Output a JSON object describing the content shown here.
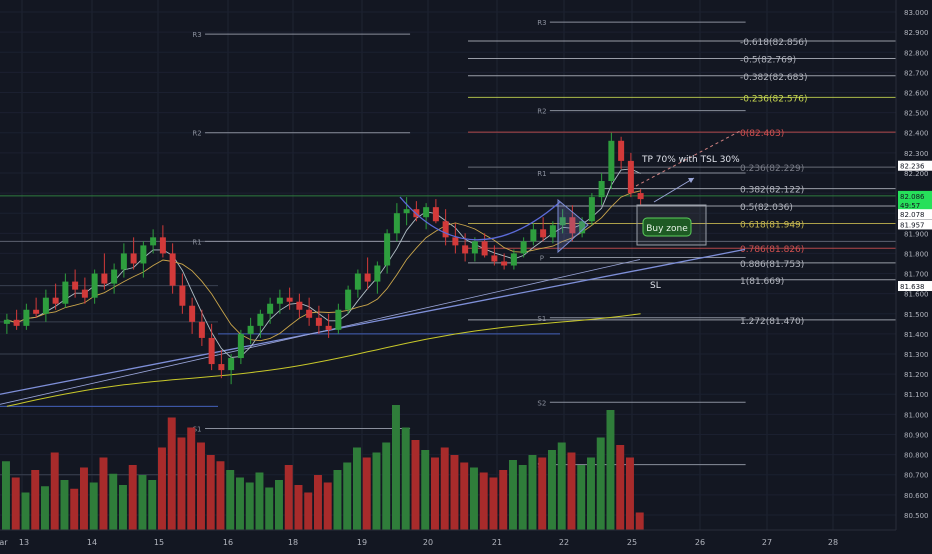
{
  "chart_data": {
    "type": "candlestick",
    "symbol_note": "",
    "x_axis": {
      "ticks": [
        "13",
        "14",
        "15",
        "16",
        "18",
        "19",
        "20",
        "21",
        "22",
        "25",
        "26",
        "27",
        "28",
        "Mar"
      ]
    },
    "y_axis": {
      "range": [
        80.45,
        83.03
      ],
      "ticks": [
        "83.000",
        "82.900",
        "82.800",
        "82.700",
        "82.600",
        "82.500",
        "82.400",
        "82.300",
        "82.200",
        "82.100",
        "82.000",
        "81.900",
        "81.800",
        "81.700",
        "81.600",
        "81.500",
        "81.400",
        "81.300",
        "81.200",
        "81.100",
        "81.000",
        "80.900",
        "80.800",
        "80.700",
        "80.600",
        "80.500"
      ],
      "highlights": [
        {
          "label": "82.236",
          "value": 82.236,
          "bg": "#ffffff",
          "fg": "#131722"
        },
        {
          "label": "82.086",
          "value": 82.086,
          "bg": "#26e05a",
          "fg": "#131722"
        },
        {
          "label": "49:57",
          "value": 82.04,
          "bg": "#26e05a",
          "fg": "#131722"
        },
        {
          "label": "82.078",
          "value": 81.995,
          "bg": "#ffffff",
          "fg": "#131722"
        },
        {
          "label": "81.957",
          "value": 81.944,
          "bg": "#ffffff",
          "fg": "#131722"
        },
        {
          "label": "81.638",
          "value": 81.638,
          "bg": "#ffffff",
          "fg": "#131722"
        }
      ]
    },
    "candles_ohlc": [
      [
        81.45,
        81.5,
        81.4,
        81.47
      ],
      [
        81.47,
        81.52,
        81.42,
        81.44
      ],
      [
        81.44,
        81.55,
        81.42,
        81.52
      ],
      [
        81.52,
        81.58,
        81.48,
        81.5
      ],
      [
        81.5,
        81.62,
        81.46,
        81.58
      ],
      [
        81.58,
        81.65,
        81.52,
        81.55
      ],
      [
        81.55,
        81.7,
        81.53,
        81.66
      ],
      [
        81.66,
        81.72,
        81.58,
        81.62
      ],
      [
        81.62,
        81.68,
        81.55,
        81.58
      ],
      [
        81.58,
        81.72,
        81.55,
        81.7
      ],
      [
        81.7,
        81.8,
        81.62,
        81.65
      ],
      [
        81.65,
        81.75,
        81.6,
        81.72
      ],
      [
        81.72,
        81.85,
        81.68,
        81.8
      ],
      [
        81.8,
        81.88,
        81.72,
        81.75
      ],
      [
        81.75,
        81.86,
        81.68,
        81.84
      ],
      [
        81.84,
        81.92,
        81.8,
        81.88
      ],
      [
        81.88,
        81.94,
        81.78,
        81.8
      ],
      [
        81.8,
        81.85,
        81.6,
        81.64
      ],
      [
        81.64,
        81.7,
        81.5,
        81.54
      ],
      [
        81.54,
        81.58,
        81.4,
        81.46
      ],
      [
        81.46,
        81.52,
        81.34,
        81.38
      ],
      [
        81.38,
        81.45,
        81.22,
        81.25
      ],
      [
        81.25,
        81.32,
        81.18,
        81.22
      ],
      [
        81.22,
        81.3,
        81.15,
        81.28
      ],
      [
        81.28,
        81.42,
        81.25,
        81.4
      ],
      [
        81.4,
        81.48,
        81.35,
        81.44
      ],
      [
        81.44,
        81.52,
        81.38,
        81.5
      ],
      [
        81.5,
        81.58,
        81.45,
        81.55
      ],
      [
        81.55,
        81.62,
        81.5,
        81.58
      ],
      [
        81.58,
        81.63,
        81.52,
        81.56
      ],
      [
        81.56,
        81.6,
        81.48,
        81.52
      ],
      [
        81.52,
        81.58,
        81.44,
        81.48
      ],
      [
        81.48,
        81.54,
        81.4,
        81.44
      ],
      [
        81.44,
        81.5,
        81.38,
        81.42
      ],
      [
        81.42,
        81.55,
        81.4,
        81.52
      ],
      [
        81.52,
        81.64,
        81.5,
        81.62
      ],
      [
        81.62,
        81.72,
        81.58,
        81.7
      ],
      [
        81.7,
        81.78,
        81.62,
        81.66
      ],
      [
        81.66,
        81.76,
        81.6,
        81.74
      ],
      [
        81.74,
        81.92,
        81.7,
        81.9
      ],
      [
        81.9,
        82.05,
        81.86,
        82.0
      ],
      [
        82.0,
        82.08,
        81.94,
        82.02
      ],
      [
        82.02,
        82.06,
        81.96,
        81.98
      ],
      [
        81.98,
        82.05,
        81.92,
        82.03
      ],
      [
        82.03,
        82.07,
        81.95,
        81.96
      ],
      [
        81.96,
        82.02,
        81.84,
        81.88
      ],
      [
        81.88,
        81.95,
        81.8,
        81.84
      ],
      [
        81.84,
        81.9,
        81.76,
        81.8
      ],
      [
        81.8,
        81.88,
        81.76,
        81.86
      ],
      [
        81.86,
        81.9,
        81.78,
        81.79
      ],
      [
        81.79,
        81.84,
        81.74,
        81.76
      ],
      [
        81.76,
        81.8,
        81.72,
        81.74
      ],
      [
        81.74,
        81.82,
        81.72,
        81.8
      ],
      [
        81.8,
        81.88,
        81.78,
        81.86
      ],
      [
        81.86,
        81.95,
        81.84,
        81.92
      ],
      [
        81.92,
        81.98,
        81.86,
        81.88
      ],
      [
        81.88,
        81.96,
        81.85,
        81.94
      ],
      [
        81.94,
        82.02,
        81.9,
        81.98
      ],
      [
        81.98,
        82.04,
        81.86,
        81.9
      ],
      [
        81.9,
        81.98,
        81.88,
        81.96
      ],
      [
        81.96,
        82.1,
        81.94,
        82.08
      ],
      [
        82.08,
        82.2,
        82.04,
        82.16
      ],
      [
        82.16,
        82.4,
        82.12,
        82.36
      ],
      [
        82.36,
        82.38,
        82.22,
        82.26
      ],
      [
        82.26,
        82.3,
        82.08,
        82.1
      ],
      [
        82.1,
        82.12,
        82.04,
        82.07
      ]
    ],
    "volumes": [
      0.55,
      0.42,
      0.3,
      0.48,
      0.35,
      0.62,
      0.4,
      0.33,
      0.5,
      0.38,
      0.58,
      0.45,
      0.36,
      0.52,
      0.44,
      0.4,
      0.66,
      0.9,
      0.74,
      0.82,
      0.7,
      0.6,
      0.55,
      0.48,
      0.42,
      0.38,
      0.46,
      0.34,
      0.4,
      0.52,
      0.36,
      0.3,
      0.44,
      0.38,
      0.48,
      0.54,
      0.66,
      0.58,
      0.62,
      0.7,
      1.0,
      0.82,
      0.72,
      0.64,
      0.58,
      0.66,
      0.6,
      0.54,
      0.5,
      0.46,
      0.42,
      0.48,
      0.56,
      0.52,
      0.6,
      0.58,
      0.64,
      0.7,
      0.62,
      0.52,
      0.58,
      0.74,
      0.96,
      0.68,
      0.58,
      0.14
    ],
    "pivots": [
      {
        "label": "R3",
        "value": 82.89,
        "x1": 0.22,
        "x2": 0.44
      },
      {
        "label": "R2",
        "value": 82.4,
        "x1": 0.22,
        "x2": 0.44
      },
      {
        "label": "R1",
        "value": 81.86,
        "x1": 0.22,
        "x2": 0.44
      },
      {
        "label": "S1",
        "value": 80.93,
        "x1": 0.22,
        "x2": 0.44
      },
      {
        "label": "R3",
        "value": 82.95,
        "x1": 0.59,
        "x2": 0.8
      },
      {
        "label": "R2",
        "value": 82.51,
        "x1": 0.59,
        "x2": 0.8
      },
      {
        "label": "R1",
        "value": 82.2,
        "x1": 0.59,
        "x2": 0.8
      },
      {
        "label": "P",
        "value": 81.78,
        "x1": 0.59,
        "x2": 0.8
      },
      {
        "label": "S1",
        "value": 81.48,
        "x1": 0.59,
        "x2": 0.8
      },
      {
        "label": "S2",
        "value": 81.06,
        "x1": 0.59,
        "x2": 0.8
      },
      {
        "label": "S3",
        "value": 80.75,
        "x1": 0.59,
        "x2": 0.8
      }
    ],
    "fib_levels": [
      {
        "label": "-0.618(82.856)",
        "value": 82.856,
        "color": "#b2b5be"
      },
      {
        "label": "-0.5(82.769)",
        "value": 82.769,
        "color": "#b2b5be"
      },
      {
        "label": "-0.382(82.683)",
        "value": 82.683,
        "color": "#b2b5be"
      },
      {
        "label": "-0.236(82.576)",
        "value": 82.576,
        "color": "#c8d850"
      },
      {
        "label": "0(82.403)",
        "value": 82.403,
        "color": "#d05050"
      },
      {
        "label": "0.236(82.229)",
        "value": 82.229,
        "color": "#787b86"
      },
      {
        "label": "0.382(82.122)",
        "value": 82.122,
        "color": "#b2b5be"
      },
      {
        "label": "0.5(82.036)",
        "value": 82.036,
        "color": "#b2b5be"
      },
      {
        "label": "0.618(81.949)",
        "value": 81.949,
        "color": "#c8b850"
      },
      {
        "label": "0.786(81.826)",
        "value": 81.826,
        "color": "#d05050"
      },
      {
        "label": "0.886(81.753)",
        "value": 81.753,
        "color": "#b2b5be"
      },
      {
        "label": "1(81.669)",
        "value": 81.669,
        "color": "#b2b5be"
      },
      {
        "label": "1.272(81.470)",
        "value": 81.47,
        "color": "#b2b5be"
      }
    ],
    "annotations": {
      "tp_text": "TP 70% with TSL 30%",
      "buy_zone": "Buy zone",
      "sl": "SL"
    },
    "colors": {
      "background": "#131722",
      "up": "#26a69a",
      "up_candle": "#2e9e3e",
      "down_candle": "#d23a3a",
      "vol_up": "#2f7d3a",
      "vol_down": "#a82b2b",
      "ma_fast": "#b0bec5",
      "ma_mid": "#c9a54b",
      "ma_slow": "#c8c82a",
      "trend": "#7e8fd8",
      "axis_text": "#b2b5be"
    }
  }
}
